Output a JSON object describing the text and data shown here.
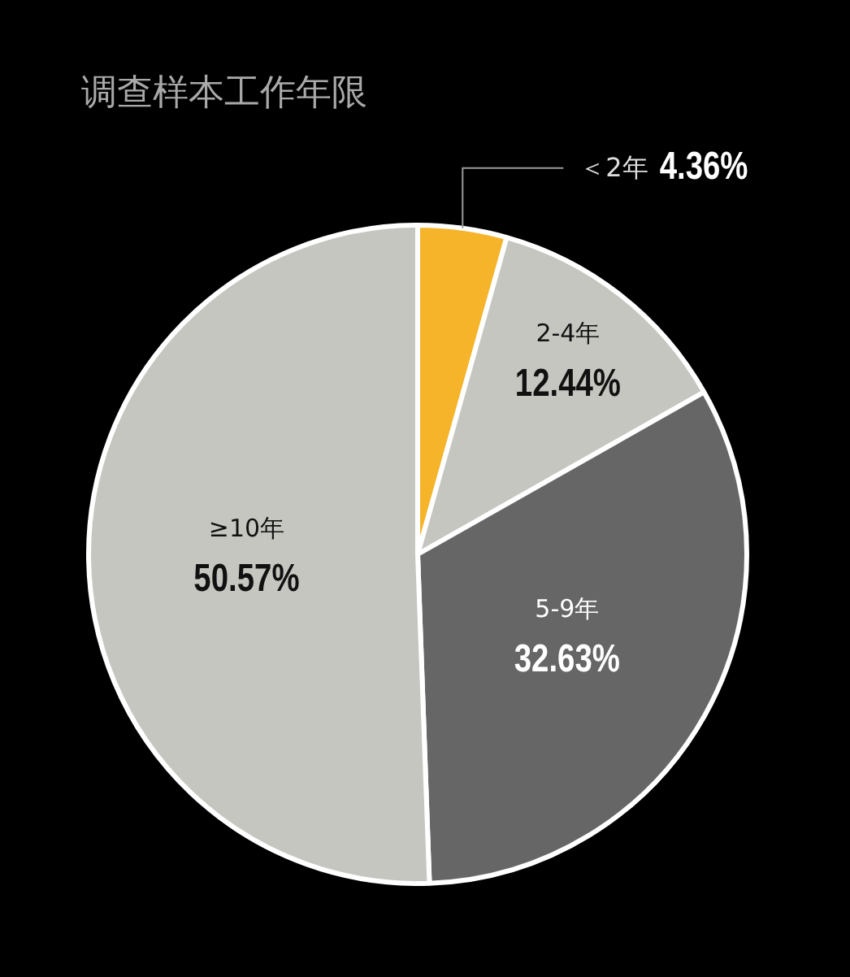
{
  "chart_data": {
    "type": "pie",
    "title": "调查样本工作年限",
    "categories": [
      "＜2年",
      "2-4年",
      "5-9年",
      "≥10年"
    ],
    "values": [
      4.36,
      12.44,
      32.63,
      50.57
    ],
    "colors": [
      "#f6b42a",
      "#c6c6c1",
      "#666666",
      "#c6c6c1"
    ],
    "value_labels": [
      "4.36%",
      "12.44%",
      "32.63%",
      "50.57%"
    ]
  }
}
